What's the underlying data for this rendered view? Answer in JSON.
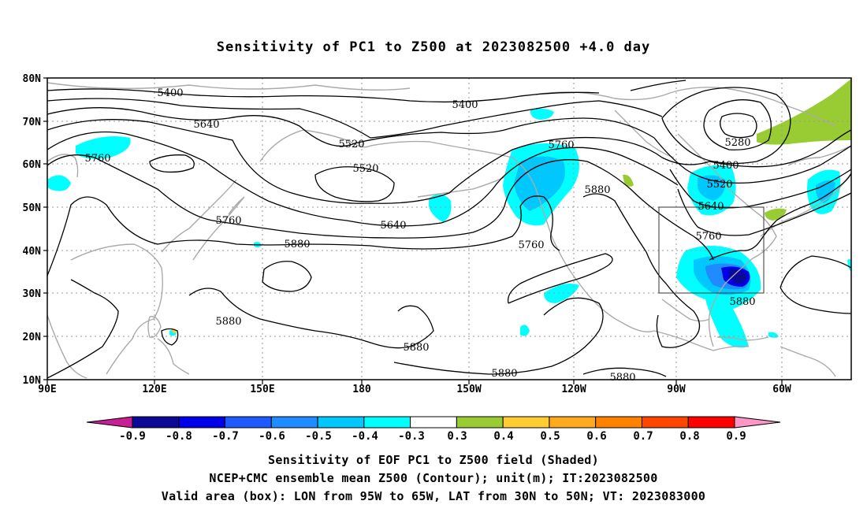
{
  "title": "Sensitivity of PC1 to Z500 at 2023082500 +4.0 day",
  "lat_labels": [
    "80N",
    "70N",
    "60N",
    "50N",
    "40N",
    "30N",
    "20N",
    "10N"
  ],
  "lon_labels": [
    "90E",
    "120E",
    "150E",
    "180",
    "150W",
    "120W",
    "90W",
    "60W"
  ],
  "contour_labels": [
    "5400",
    "5400",
    "5640",
    "5520",
    "5520",
    "5760",
    "5760",
    "5640",
    "5880",
    "5760",
    "5760",
    "5880",
    "5880",
    "5880",
    "5880",
    "5880",
    "5280",
    "5400",
    "5520",
    "5640",
    "5760",
    "5880"
  ],
  "colorbar": {
    "tick_labels": [
      "-0.9",
      "-0.8",
      "-0.7",
      "-0.6",
      "-0.5",
      "-0.4",
      "-0.3",
      "0.3",
      "0.4",
      "0.5",
      "0.6",
      "0.7",
      "0.8",
      "0.9"
    ],
    "colors": [
      "#0a0a96",
      "#0000e6",
      "#1e5aff",
      "#1e8cff",
      "#00c8ff",
      "#00ffff",
      "#ffffff",
      "#99cc33",
      "#ffcc33",
      "#ffaa1e",
      "#ff8200",
      "#ff4600",
      "#ff0000"
    ],
    "low_end_color": "#c81e96",
    "high_end_color": "#ff96c8"
  },
  "captions": {
    "line1": "Sensitivity of EOF PC1 to Z500 field (Shaded)",
    "line2": "NCEP+CMC ensemble mean Z500 (Contour); unit(m); IT:2023082500",
    "line3": "Valid area (box): LON from 95W to 65W, LAT from 30N to 50N; VT: 2023083000"
  },
  "valid_box": {
    "lon_west": "95W",
    "lon_east": "65W",
    "lat_south": "30N",
    "lat_north": "50N"
  }
}
